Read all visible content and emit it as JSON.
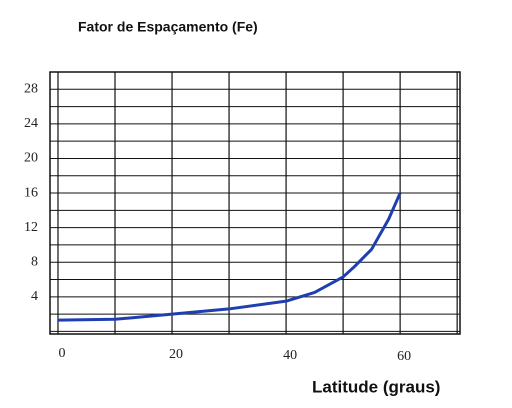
{
  "chart_data": {
    "type": "line",
    "title": "Fator de Espaçamento (Fe)",
    "x_label": "Latitude (graus)",
    "x": [
      0,
      10,
      20,
      30,
      40,
      45,
      50,
      52,
      55,
      58,
      60
    ],
    "series": [
      {
        "name": "Fe",
        "color": "#1f3fb0",
        "values": [
          1.3,
          1.4,
          2.0,
          2.6,
          3.5,
          4.5,
          6.3,
          7.5,
          9.5,
          13,
          16
        ]
      }
    ],
    "xlim": [
      -1.4,
      70.5
    ],
    "xticks": [
      0,
      20,
      40,
      60
    ],
    "x_minor_grid": [
      10,
      30,
      50,
      70
    ],
    "ylim": [
      -0.3,
      30
    ],
    "yticks": [
      4,
      8,
      12,
      16,
      20,
      24,
      28
    ],
    "y_minor_grid": [
      0,
      2,
      6,
      10,
      14,
      18,
      22,
      26
    ],
    "grid": true
  }
}
